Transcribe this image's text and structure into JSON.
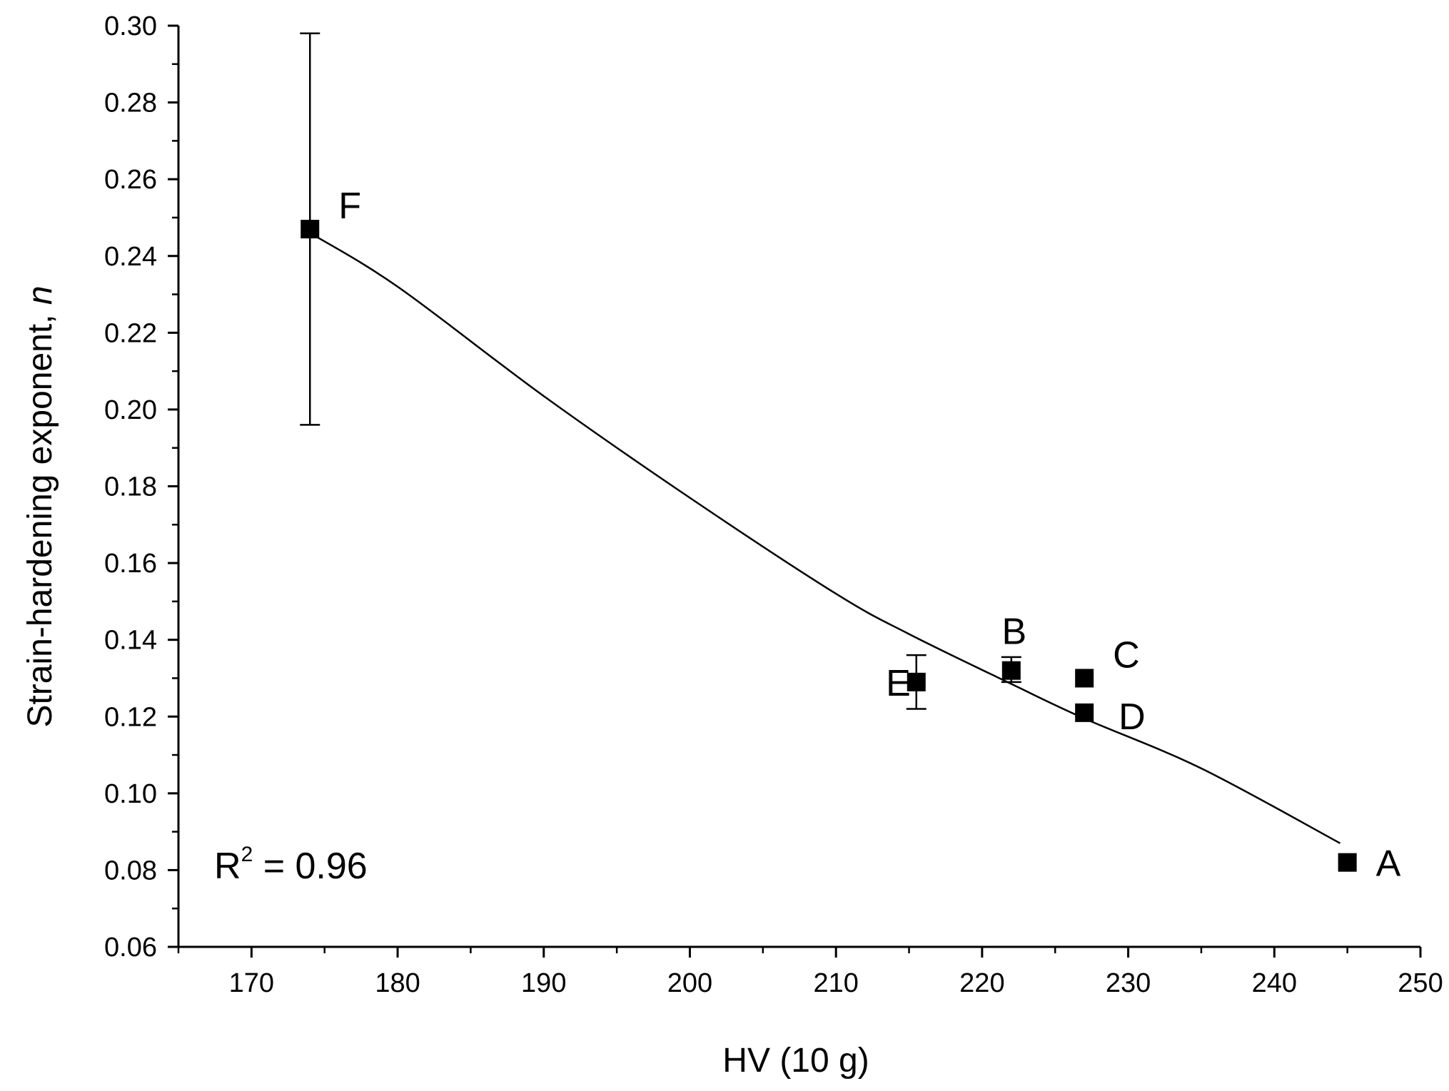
{
  "chart_data": {
    "type": "scatter",
    "title": "",
    "xlabel": "HV (10 g)",
    "ylabel": {
      "text": "Strain-hardening exponent, ",
      "italic": "n"
    },
    "xlim": [
      165,
      250
    ],
    "ylim": [
      0.06,
      0.3
    ],
    "x_ticks": [
      {
        "value": 170,
        "label": "170"
      },
      {
        "value": 180,
        "label": "180"
      },
      {
        "value": 190,
        "label": "190"
      },
      {
        "value": 200,
        "label": "200"
      },
      {
        "value": 210,
        "label": "210"
      },
      {
        "value": 220,
        "label": "220"
      },
      {
        "value": 230,
        "label": "230"
      },
      {
        "value": 240,
        "label": "240"
      },
      {
        "value": 250,
        "label": "250"
      }
    ],
    "y_ticks": [
      {
        "value": 0.06,
        "label": "0.06"
      },
      {
        "value": 0.08,
        "label": "0.08"
      },
      {
        "value": 0.1,
        "label": "0.10"
      },
      {
        "value": 0.12,
        "label": "0.12"
      },
      {
        "value": 0.14,
        "label": "0.14"
      },
      {
        "value": 0.16,
        "label": "0.16"
      },
      {
        "value": 0.18,
        "label": "0.18"
      },
      {
        "value": 0.2,
        "label": "0.20"
      },
      {
        "value": 0.22,
        "label": "0.22"
      },
      {
        "value": 0.24,
        "label": "0.24"
      },
      {
        "value": 0.26,
        "label": "0.26"
      },
      {
        "value": 0.28,
        "label": "0.28"
      },
      {
        "value": 0.3,
        "label": "0.30"
      }
    ],
    "points": [
      {
        "label": "F",
        "x": 174.0,
        "y": 0.247,
        "err_low": 0.196,
        "err_high": 0.298,
        "label_side": "upper-right"
      },
      {
        "label": "E",
        "x": 215.5,
        "y": 0.129,
        "err_low": 0.122,
        "err_high": 0.136,
        "label_side": "left"
      },
      {
        "label": "B",
        "x": 222.0,
        "y": 0.132,
        "err_low": 0.129,
        "err_high": 0.1355,
        "label_side": "above"
      },
      {
        "label": "C",
        "x": 227.0,
        "y": 0.13,
        "label_side": "upper-right"
      },
      {
        "label": "D",
        "x": 227.0,
        "y": 0.121,
        "label_side": "lower-right"
      },
      {
        "label": "A",
        "x": 245.0,
        "y": 0.082,
        "label_side": "right"
      }
    ],
    "fit_curve": {
      "type": "power",
      "x": [
        174,
        180,
        190,
        200,
        210,
        215,
        222,
        227,
        235,
        244.5
      ],
      "y": [
        0.246,
        0.232,
        0.2035,
        0.177,
        0.152,
        0.1415,
        0.1285,
        0.1195,
        0.1065,
        0.087
      ]
    },
    "annotation": {
      "text": "R",
      "superscript": "2",
      "rest": " = 0.96"
    },
    "grid": false
  }
}
